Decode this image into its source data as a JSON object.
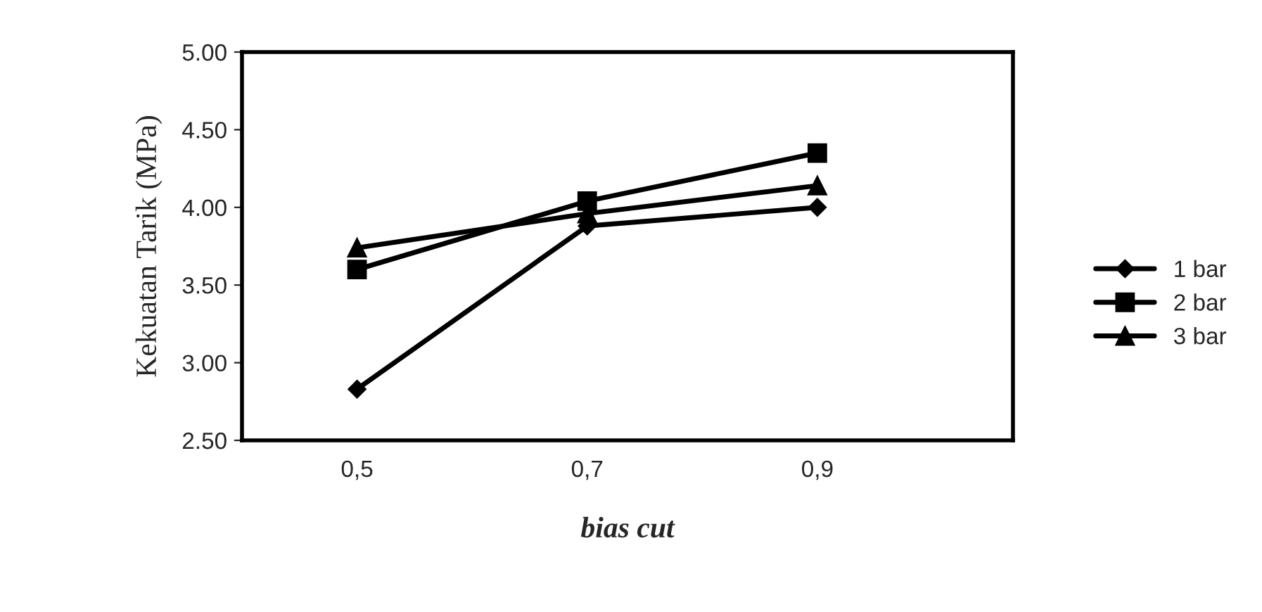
{
  "chart_data": {
    "type": "line",
    "xlabel": "bias cut",
    "ylabel": "Kekuatan Tarik (MPa)",
    "categories": [
      "0,5",
      "0,7",
      "0,9"
    ],
    "ylim": [
      2.5,
      5.0
    ],
    "yticks": [
      {
        "value": 2.5,
        "label": "2.50"
      },
      {
        "value": 3.0,
        "label": "3.00"
      },
      {
        "value": 3.5,
        "label": "3.50"
      },
      {
        "value": 4.0,
        "label": "4.00"
      },
      {
        "value": 4.5,
        "label": "4.50"
      },
      {
        "value": 5.0,
        "label": "5.00"
      }
    ],
    "series": [
      {
        "name": "1 bar",
        "color": "#000000",
        "marker": "diamond",
        "values": [
          2.83,
          3.88,
          4.0
        ]
      },
      {
        "name": "2 bar",
        "color": "#000000",
        "marker": "square",
        "values": [
          3.6,
          4.04,
          4.35
        ]
      },
      {
        "name": "3 bar",
        "color": "#000000",
        "marker": "triangle",
        "values": [
          3.74,
          3.96,
          4.14
        ]
      }
    ],
    "grid": false,
    "legend": "right",
    "line_style": "solid"
  }
}
